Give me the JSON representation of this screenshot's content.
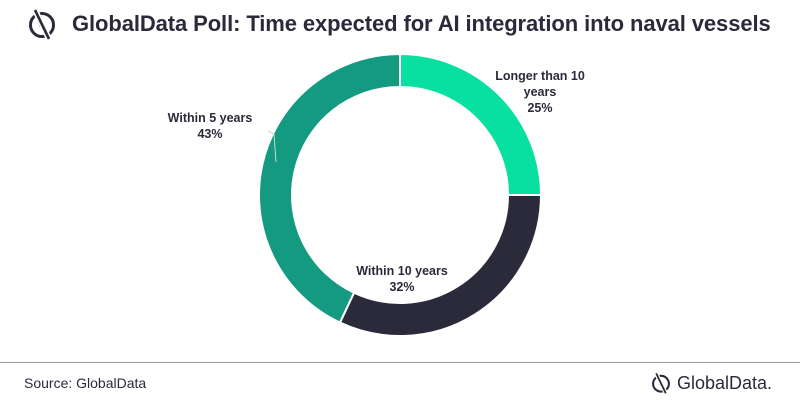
{
  "header": {
    "title": "GlobalData Poll: Time expected for AI integration into naval vessels",
    "logo_icon": "globaldata-logo-icon"
  },
  "chart_data": {
    "type": "pie",
    "donut": true,
    "start_angle_deg": 0,
    "direction": "clockwise",
    "slices": [
      {
        "label": "Longer than 10 years",
        "label_lines": [
          "Longer than 10",
          "years"
        ],
        "value": 25,
        "value_label": "25%",
        "color": "#08e0a2"
      },
      {
        "label": "Within 10 years",
        "label_lines": [
          "Within 10 years"
        ],
        "value": 32,
        "value_label": "32%",
        "color": "#2b2a3a"
      },
      {
        "label": "Within 5 years",
        "label_lines": [
          "Within 5 years"
        ],
        "value": 43,
        "value_label": "43%",
        "color": "#149a80"
      }
    ],
    "legend": "none"
  },
  "footer": {
    "source": "Source: GlobalData",
    "brand_name": "GlobalData.",
    "brand_icon": "globaldata-logo-icon"
  }
}
